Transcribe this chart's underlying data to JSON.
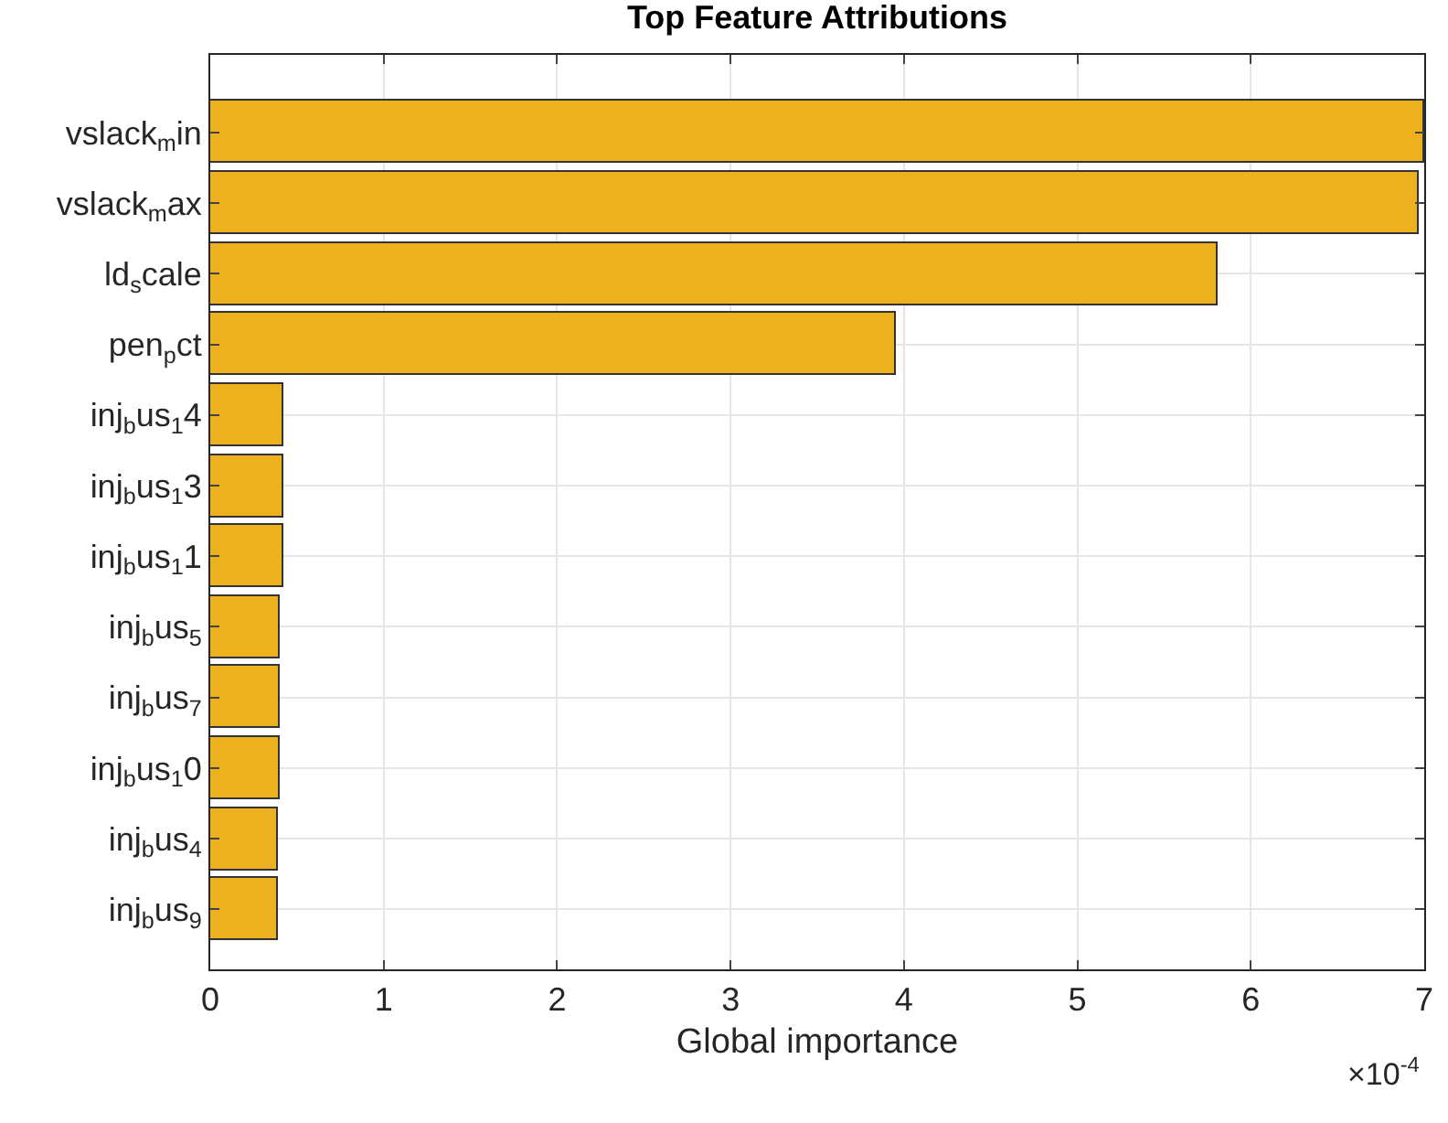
{
  "chart_data": {
    "type": "bar",
    "orientation": "horizontal",
    "title": "Top Feature Attributions",
    "xlabel": "Global importance",
    "categories": [
      "vslack$_{m}$in",
      "vslack$_{m}$ax",
      "ld$_{s}$cale",
      "pen$_{p}$ct",
      "inj$_{b}$us$_{1}$4",
      "inj$_{b}$us$_{1}$3",
      "inj$_{b}$us$_{1}$1",
      "inj$_{b}$us$_{5}$",
      "inj$_{b}$us$_{7}$",
      "inj$_{b}$us$_{1}$0",
      "inj$_{b}$us$_{4}$",
      "inj$_{b}$us$_{9}$"
    ],
    "values": [
      7.0,
      6.97,
      5.81,
      3.95,
      0.42,
      0.42,
      0.42,
      0.4,
      0.4,
      0.4,
      0.39,
      0.39
    ],
    "color": "#edb120",
    "xlim": [
      0,
      7
    ],
    "xticks": [
      0,
      1,
      2,
      3,
      4,
      5,
      6,
      7
    ],
    "grid": true,
    "annotations": [
      "×10$^{-4}$"
    ]
  }
}
